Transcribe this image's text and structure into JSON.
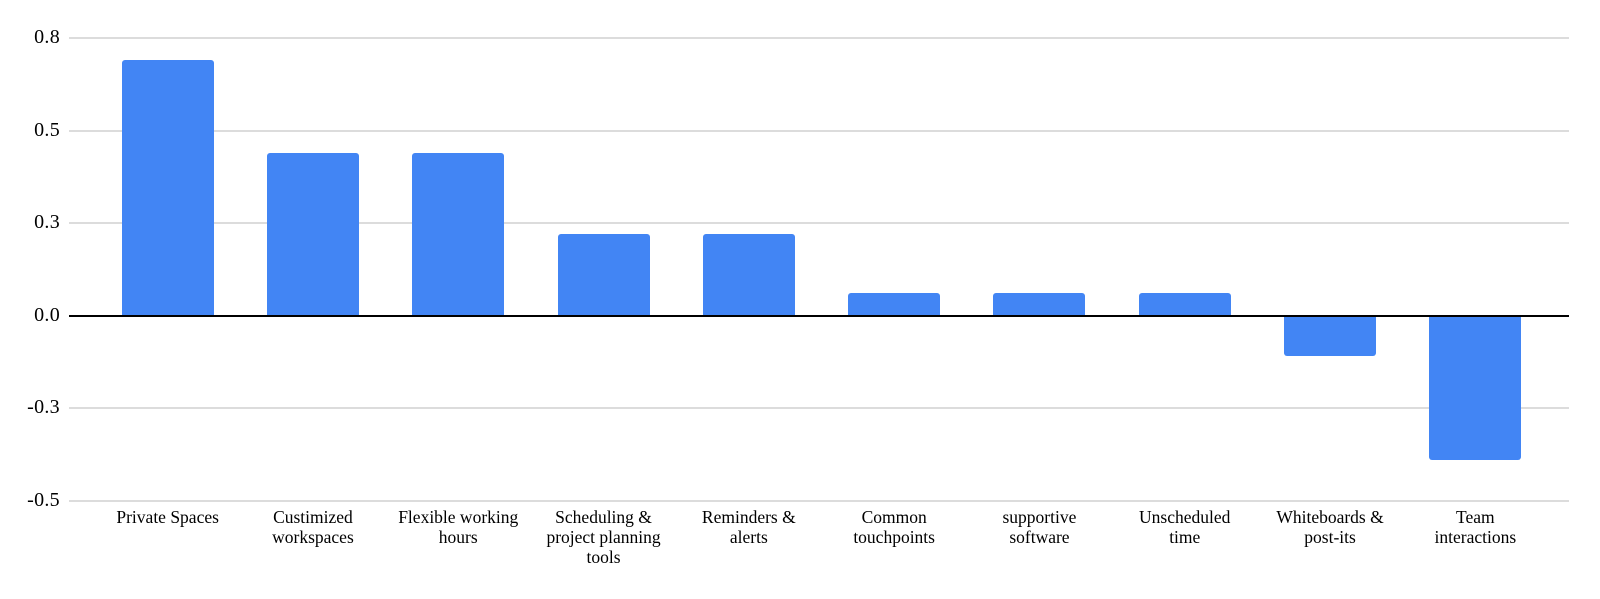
{
  "chart_data": {
    "type": "bar",
    "title": "",
    "xlabel": "",
    "ylabel": "",
    "legend": "none",
    "grid": true,
    "background_color": "#ffffff",
    "bar_color": "#4285f4",
    "gridline_color": "#dcdcdc",
    "zero_axis_color": "#000000",
    "text_color": "#000000",
    "categories": [
      "Private Spaces",
      "Custimized workspaces",
      "Flexible working hours",
      "Scheduling & project planning tools",
      "Reminders & alerts",
      "Common touchpoints",
      "supportive software",
      "Unscheduled time",
      "Whiteboards & post-its",
      "Team interactions"
    ],
    "categories_display": [
      "Private Spaces",
      "Custimized\nworkspaces",
      "Flexible working\nhours",
      "Scheduling &\nproject planning\ntools",
      "Reminders &\nalerts",
      "Common\ntouchpoints",
      "supportive\nsoftware",
      "Unscheduled\ntime",
      "Whiteboards &\npost-its",
      "Team\ninteractions"
    ],
    "values": [
      0.69,
      0.44,
      0.44,
      0.22,
      0.22,
      0.06,
      0.06,
      0.06,
      -0.11,
      -0.39
    ],
    "y_axis": {
      "tick_values": [
        0.75,
        0.5,
        0.25,
        0,
        -0.25,
        -0.5
      ],
      "tick_labels": [
        "0.8",
        "0.5",
        "0.3",
        "0.0",
        "-0.3",
        "-0.5"
      ],
      "ylim": [
        -0.5,
        0.75
      ]
    }
  }
}
